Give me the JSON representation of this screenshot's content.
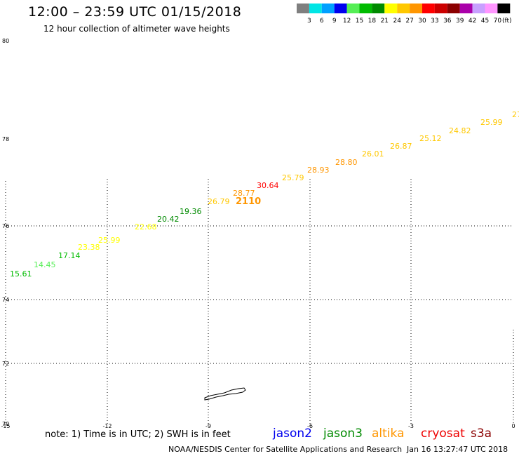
{
  "header": {
    "title": "12:00 – 23:59 UTC 01/15/2018",
    "subtitle": "12 hour collection of altimeter wave heights"
  },
  "legend": {
    "units": "(ft)",
    "swatches": [
      {
        "label": "3",
        "color": "#7f7f7f"
      },
      {
        "label": "6",
        "color": "#00e5e5"
      },
      {
        "label": "9",
        "color": "#00a0ff"
      },
      {
        "label": "12",
        "color": "#0000ee"
      },
      {
        "label": "15",
        "color": "#55ee55"
      },
      {
        "label": "18",
        "color": "#00bb00"
      },
      {
        "label": "21",
        "color": "#008a00"
      },
      {
        "label": "24",
        "color": "#ffff00"
      },
      {
        "label": "27",
        "color": "#ffc800"
      },
      {
        "label": "30",
        "color": "#ff9600"
      },
      {
        "label": "33",
        "color": "#ff0000"
      },
      {
        "label": "36",
        "color": "#cc0000"
      },
      {
        "label": "39",
        "color": "#8b0000"
      },
      {
        "label": "42",
        "color": "#aa00aa"
      },
      {
        "label": "45",
        "color": "#c8a0ff"
      },
      {
        "label": "70",
        "color": "#ff96ff"
      },
      {
        "label": "",
        "color": "#000000"
      }
    ]
  },
  "map": {
    "lat_labels": [
      "80",
      "78",
      "76",
      "74",
      "72",
      "70"
    ],
    "lon_labels": [
      "-15",
      "-12",
      "-9",
      "-6",
      "-3",
      "0"
    ],
    "track_points": [
      {
        "value": "15.61",
        "color": "#00bb00"
      },
      {
        "value": "14.45",
        "color": "#55ee55"
      },
      {
        "value": "17.14",
        "color": "#00bb00"
      },
      {
        "value": "23.38",
        "color": "#ffff00"
      },
      {
        "value": "25.99",
        "color": "#ffff00"
      },
      {
        "value": "22.68",
        "color": "#ffff00"
      },
      {
        "value": "20.42",
        "color": "#008a00"
      },
      {
        "value": "19.36",
        "color": "#008a00"
      },
      {
        "value": "26.79",
        "color": "#ffc800"
      },
      {
        "value": "28.77",
        "color": "#ff9600"
      },
      {
        "value": "30.64",
        "color": "#ff0000"
      },
      {
        "value": "25.79",
        "color": "#ffc800"
      },
      {
        "value": "28.93",
        "color": "#ff9600"
      },
      {
        "value": "28.80",
        "color": "#ff9600"
      },
      {
        "value": "26.01",
        "color": "#ffc800"
      },
      {
        "value": "26.87",
        "color": "#ffc800"
      },
      {
        "value": "25.12",
        "color": "#ffc800"
      },
      {
        "value": "24.82",
        "color": "#ffc800"
      },
      {
        "value": "25.99",
        "color": "#ffc800"
      },
      {
        "value": "27",
        "color": "#ffc800"
      }
    ],
    "time_label": {
      "value": "2110",
      "color": "#ff9600"
    }
  },
  "footer": {
    "note": "note: 1) Time is in UTC; 2) SWH is in feet",
    "satellites": [
      {
        "name": "jason2",
        "color": "#0000ee"
      },
      {
        "name": "jason3",
        "color": "#008a00"
      },
      {
        "name": "altika",
        "color": "#ff9600"
      },
      {
        "name": "cryosat",
        "color": "#ee0000"
      },
      {
        "name": "s3a",
        "color": "#8b0000"
      }
    ],
    "credit": "NOAA/NESDIS Center for Satellite Applications and Research",
    "timestamp": "Jan 16 13:27:47 UTC 2018"
  }
}
